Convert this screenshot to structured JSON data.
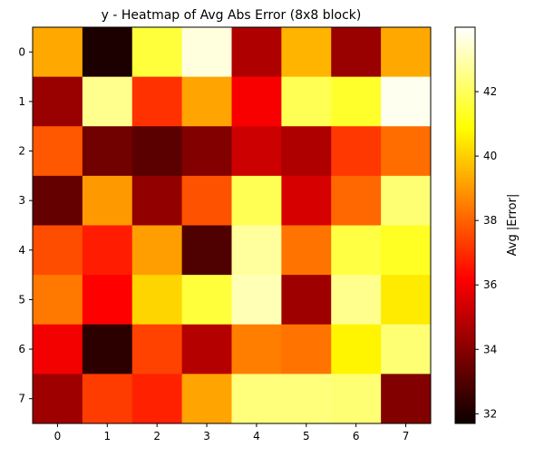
{
  "chart_data": {
    "type": "heatmap",
    "title": "y - Heatmap of Avg Abs Error (8x8 block)",
    "x_tick_labels": [
      "0",
      "1",
      "2",
      "3",
      "4",
      "5",
      "6",
      "7"
    ],
    "y_tick_labels": [
      "0",
      "1",
      "2",
      "3",
      "4",
      "5",
      "6",
      "7"
    ],
    "values": [
      [
        39.3,
        32.0,
        41.6,
        43.6,
        34.6,
        39.5,
        34.2,
        39.3
      ],
      [
        34.2,
        42.6,
        37.1,
        39.2,
        35.9,
        41.9,
        41.4,
        43.8
      ],
      [
        37.8,
        33.5,
        33.1,
        33.8,
        35.1,
        34.6,
        37.2,
        38.2
      ],
      [
        33.3,
        39.0,
        34.1,
        37.7,
        41.9,
        35.3,
        38.1,
        42.3
      ],
      [
        37.6,
        36.7,
        39.1,
        32.9,
        42.8,
        38.3,
        41.7,
        41.3
      ],
      [
        38.4,
        36.1,
        40.1,
        41.6,
        43.1,
        34.3,
        42.6,
        40.5
      ],
      [
        35.8,
        32.3,
        37.4,
        34.7,
        38.5,
        38.3,
        40.7,
        42.3
      ],
      [
        34.3,
        37.3,
        36.8,
        39.2,
        42.4,
        42.4,
        42.3,
        33.8
      ]
    ],
    "colormap": "hot",
    "vmin": 31.7,
    "vmax": 44.0,
    "colorbar": {
      "label": "Avg |Error|",
      "ticks": [
        "32",
        "34",
        "36",
        "38",
        "40",
        "42"
      ]
    }
  }
}
